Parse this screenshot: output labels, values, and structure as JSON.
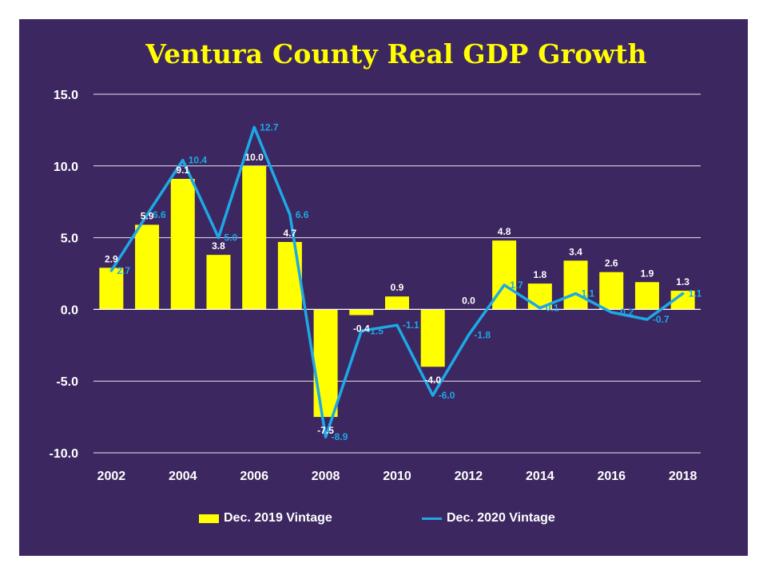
{
  "chart_data": {
    "type": "bar",
    "title": "Ventura County Real GDP Growth",
    "xlabel": "",
    "ylabel": "",
    "ylim": [
      -10,
      15
    ],
    "y_ticks": [
      "-10.0",
      "-5.0",
      "0.0",
      "5.0",
      "10.0",
      "15.0"
    ],
    "y_tick_values": [
      -10,
      -5,
      0,
      5,
      10,
      15
    ],
    "categories": [
      "2002",
      "2003",
      "2004",
      "2005",
      "2006",
      "2007",
      "2008",
      "2009",
      "2010",
      "2011",
      "2012",
      "2013",
      "2014",
      "2015",
      "2016",
      "2017",
      "2018"
    ],
    "x_tick_labels": [
      "2002",
      "2004",
      "2006",
      "2008",
      "2010",
      "2012",
      "2014",
      "2016",
      "2018"
    ],
    "grid": true,
    "legend_position": "bottom",
    "series": [
      {
        "name": "Dec. 2019 Vintage",
        "type": "bar",
        "color": "#ffff00",
        "values": [
          2.9,
          5.9,
          9.1,
          3.8,
          10.0,
          4.7,
          -7.5,
          -0.4,
          0.9,
          -4.0,
          0.0,
          4.8,
          1.8,
          3.4,
          2.6,
          1.9,
          1.3
        ],
        "labels": [
          "2.9",
          "5.9",
          "9.1",
          "3.8",
          "10.0",
          "4.7",
          "-7.5",
          "-0.4",
          "0.9",
          "-4.0",
          "0.0",
          "4.8",
          "1.8",
          "3.4",
          "2.6",
          "1.9",
          "1.3"
        ]
      },
      {
        "name": "Dec. 2020 Vintage",
        "type": "line",
        "color": "#1ea8e6",
        "values": [
          2.7,
          6.6,
          10.4,
          5.0,
          12.7,
          6.6,
          -8.9,
          -1.5,
          -1.1,
          -6.0,
          -1.8,
          1.7,
          0.1,
          1.1,
          -0.2,
          -0.7,
          1.1
        ],
        "labels": [
          "2.7",
          "6.6",
          "10.4",
          "5.0",
          "12.7",
          "6.6",
          "-8.9",
          "-1.5",
          "-1.1",
          "-6.0",
          "-1.8",
          "1.7",
          "0.1",
          "1.1",
          "-0.2",
          "-0.7",
          "1.1"
        ]
      }
    ]
  },
  "colors": {
    "background": "#3c2760",
    "frame": "#ffffff",
    "title": "#ffff00",
    "bar": "#ffff00",
    "line": "#1ea8e6",
    "text": "#ffffff",
    "grid": "#ffffff"
  }
}
